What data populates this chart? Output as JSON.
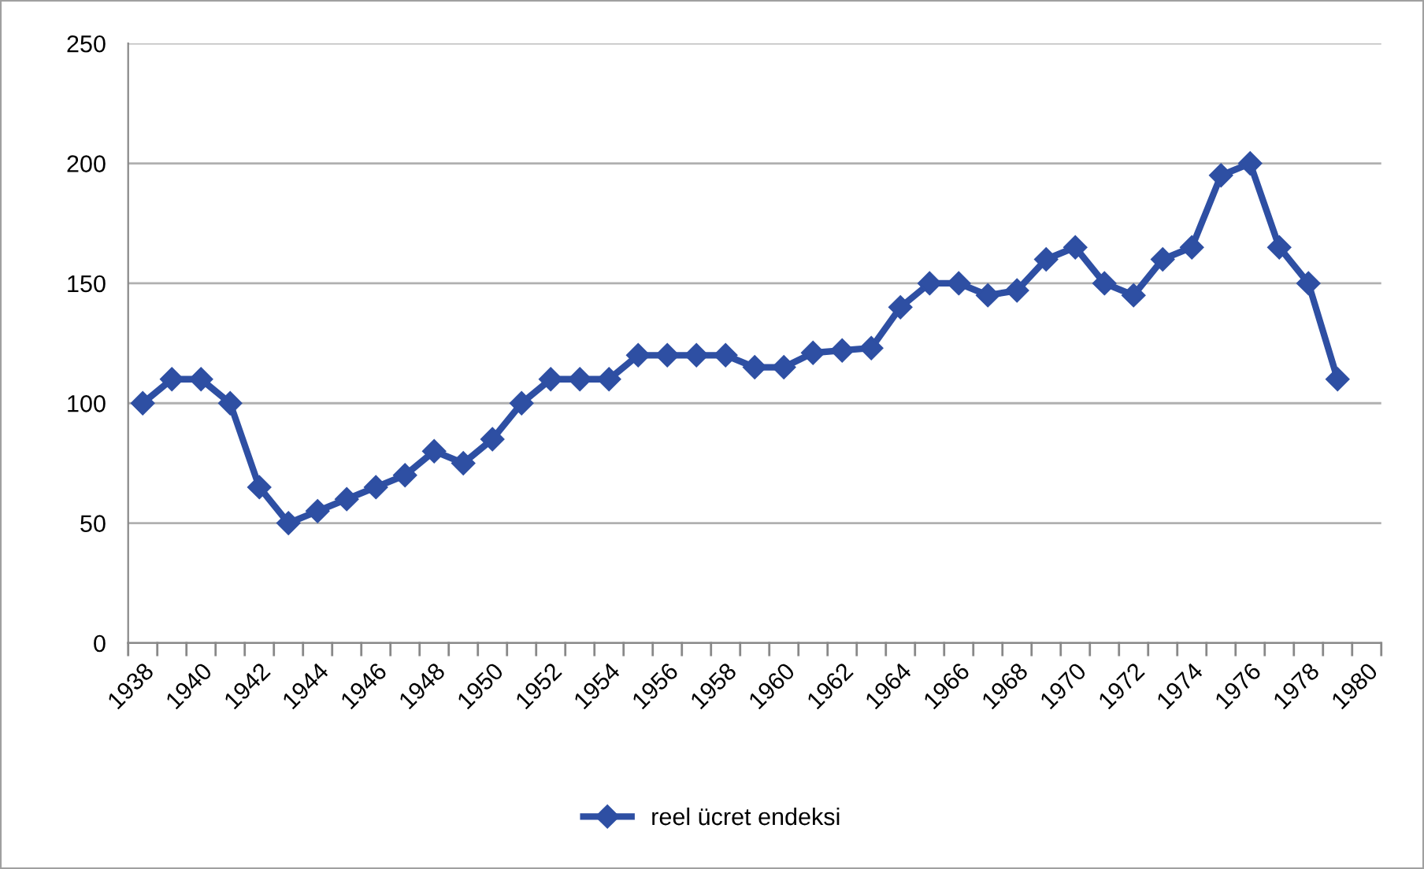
{
  "chart_data": {
    "type": "line",
    "categories": [
      "1938",
      null,
      "1940",
      null,
      "1942",
      null,
      "1944",
      null,
      "1946",
      null,
      "1948",
      null,
      "1950",
      null,
      "1952",
      null,
      "1954",
      null,
      "1956",
      null,
      "1958",
      null,
      "1960",
      null,
      "1962",
      null,
      "1964",
      null,
      "1966",
      null,
      "1968",
      null,
      "1970",
      null,
      "1972",
      null,
      "1974",
      null,
      "1976",
      null,
      "1978",
      null,
      "1980"
    ],
    "series": [
      {
        "name": "reel ücret endeksi",
        "color": "#2e4fa3",
        "values": [
          100,
          110,
          110,
          100,
          65,
          50,
          55,
          60,
          65,
          70,
          80,
          75,
          85,
          100,
          110,
          110,
          110,
          120,
          120,
          120,
          120,
          115,
          115,
          121,
          122,
          123,
          140,
          150,
          150,
          145,
          147,
          160,
          165,
          150,
          145,
          160,
          165,
          195,
          200,
          165,
          150,
          110,
          null
        ]
      }
    ],
    "ylim": [
      0,
      250
    ],
    "yticks": [
      0,
      50,
      100,
      150,
      200,
      250
    ],
    "grid": "y",
    "legend": "bottom",
    "marker": "diamond",
    "line_style": "solid"
  }
}
